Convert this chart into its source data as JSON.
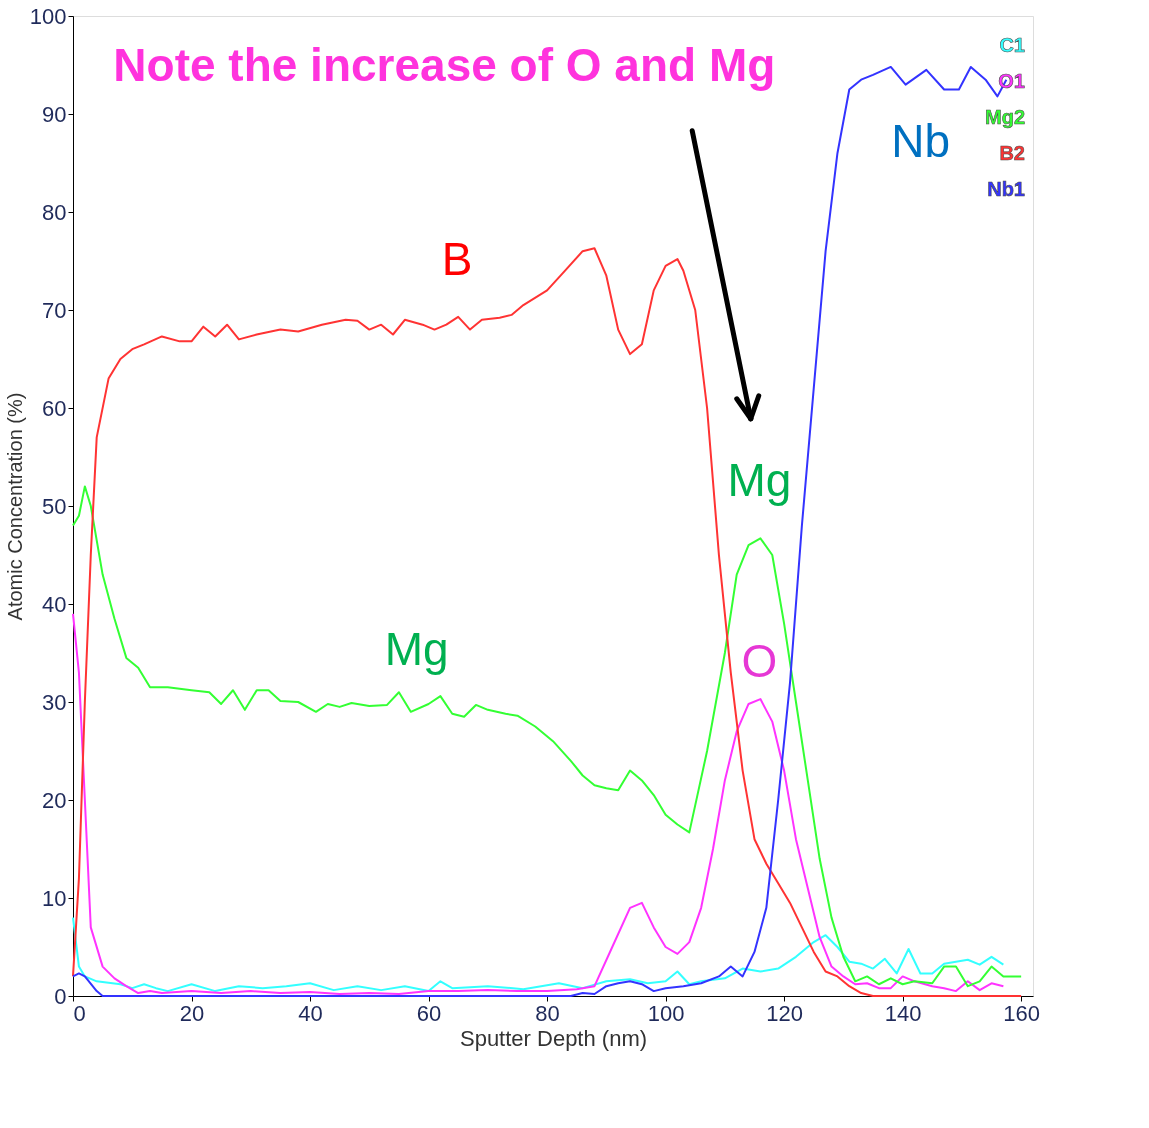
{
  "chart_data": {
    "type": "line",
    "xlabel": "Sputter Depth (nm)",
    "ylabel": "Atomic Concentration (%)",
    "xlim": [
      0,
      162
    ],
    "ylim": [
      0,
      100
    ],
    "xticks": [
      0,
      20,
      40,
      60,
      80,
      100,
      120,
      140,
      160
    ],
    "yticks": [
      0,
      10,
      20,
      30,
      40,
      50,
      60,
      70,
      80,
      90,
      100
    ],
    "grid": false,
    "legend": "top right",
    "marker": "none",
    "line_style": "solid",
    "annotations": [
      "Note the increase of O and Mg",
      "B",
      "Mg",
      "Nb",
      "Mg",
      "O"
    ],
    "series": [
      {
        "name": "C1",
        "color": "#33ffff",
        "x": [
          0,
          1,
          2,
          4,
          8,
          10,
          12,
          14,
          16,
          20,
          24,
          28,
          32,
          36,
          40,
          44,
          48,
          52,
          56,
          60,
          62,
          64,
          70,
          76,
          82,
          86,
          90,
          94,
          97,
          100,
          102,
          104,
          106,
          110,
          113,
          116,
          119,
          122,
          125,
          127,
          129,
          131,
          133,
          135,
          137,
          139,
          141,
          143,
          145,
          147,
          149,
          151,
          153,
          155,
          157
        ],
        "values": [
          8,
          3,
          2,
          1.5,
          1.2,
          0.8,
          1.2,
          0.8,
          0.5,
          1.2,
          0.5,
          1,
          0.8,
          1,
          1.3,
          0.6,
          1,
          0.6,
          1,
          0.5,
          1.5,
          0.8,
          1,
          0.7,
          1.3,
          0.8,
          1.5,
          1.7,
          1.3,
          1.5,
          2.5,
          1.2,
          1.5,
          1.8,
          2.8,
          2.5,
          2.8,
          4,
          5.5,
          6.2,
          5,
          3.5,
          3.3,
          2.8,
          3.8,
          2.3,
          4.8,
          2.3,
          2.3,
          3.3,
          3.5,
          3.7,
          3.2,
          4,
          3.2
        ]
      },
      {
        "name": "O1",
        "color": "#ff33ff",
        "x": [
          0,
          1,
          2,
          3,
          5,
          7,
          9,
          11,
          13,
          15,
          20,
          25,
          30,
          35,
          40,
          45,
          50,
          55,
          60,
          65,
          70,
          75,
          80,
          85,
          88,
          91,
          94,
          96,
          98,
          100,
          102,
          104,
          106,
          108,
          110,
          112,
          114,
          116,
          118,
          120,
          122,
          124,
          126,
          128,
          130,
          132,
          134,
          136,
          138,
          140,
          142,
          145,
          147,
          149,
          151,
          153,
          155,
          157
        ],
        "values": [
          39,
          33,
          20,
          7,
          3,
          1.8,
          1,
          0.3,
          0.5,
          0.3,
          0.5,
          0.3,
          0.5,
          0.3,
          0.4,
          0.2,
          0.3,
          0.2,
          0.5,
          0.5,
          0.6,
          0.5,
          0.5,
          0.7,
          1,
          5,
          9,
          9.5,
          7,
          5,
          4.3,
          5.5,
          9,
          15,
          22,
          27,
          29.8,
          30.3,
          28,
          23,
          16,
          11,
          6,
          3,
          2,
          1.2,
          1.3,
          0.8,
          0.8,
          2,
          1.5,
          1,
          0.8,
          0.5,
          1.5,
          0.6,
          1.3,
          1
        ]
      },
      {
        "name": "Mg2",
        "color": "#33ff33",
        "x": [
          0,
          1,
          2,
          3,
          5,
          7,
          9,
          11,
          13,
          16,
          20,
          23,
          25,
          27,
          29,
          31,
          33,
          35,
          38,
          41,
          43,
          45,
          47,
          50,
          53,
          55,
          57,
          60,
          62,
          64,
          66,
          68,
          70,
          73,
          75,
          78,
          81,
          84,
          86,
          88,
          90,
          92,
          94,
          96,
          98,
          100,
          102,
          104,
          107,
          110,
          112,
          114,
          116,
          118,
          120,
          122,
          124,
          126,
          128,
          130,
          132,
          134,
          136,
          138,
          140,
          142,
          145,
          147,
          149,
          151,
          153,
          155,
          157,
          160
        ],
        "values": [
          48,
          49,
          52,
          50,
          43,
          38.5,
          34.5,
          33.5,
          31.5,
          31.5,
          31.2,
          31,
          29.8,
          31.2,
          29.2,
          31.2,
          31.2,
          30.1,
          30,
          29,
          29.8,
          29.5,
          29.9,
          29.6,
          29.7,
          31,
          29,
          29.8,
          30.6,
          28.8,
          28.5,
          29.7,
          29.2,
          28.8,
          28.6,
          27.5,
          26,
          24,
          22.5,
          21.5,
          21.2,
          21,
          23,
          22,
          20.5,
          18.5,
          17.5,
          16.7,
          25,
          35,
          43,
          46,
          46.7,
          45,
          38,
          30,
          22,
          14,
          8,
          4,
          1.5,
          2,
          1.2,
          1.8,
          1.2,
          1.5,
          1.3,
          3,
          3,
          1,
          1.5,
          3,
          2,
          2
        ]
      },
      {
        "name": "B2",
        "color": "#ff3333",
        "x": [
          0,
          1,
          2,
          3,
          4,
          6,
          8,
          10,
          12,
          15,
          18,
          20,
          22,
          24,
          26,
          28,
          31,
          35,
          38,
          42,
          46,
          48,
          50,
          52,
          54,
          56,
          59,
          61,
          63,
          65,
          67,
          69,
          72,
          74,
          76,
          80,
          83,
          86,
          88,
          90,
          92,
          94,
          96,
          98,
          100,
          102,
          103,
          105,
          107,
          109,
          111,
          113,
          115,
          117,
          119,
          121,
          123,
          125,
          127,
          129,
          131,
          133,
          135,
          160
        ],
        "values": [
          2,
          12,
          30,
          45,
          57,
          63,
          65,
          66,
          66.5,
          67.3,
          66.8,
          66.8,
          68.3,
          67.3,
          68.5,
          67,
          67.5,
          68,
          67.8,
          68.5,
          69,
          68.9,
          68,
          68.5,
          67.5,
          69,
          68.5,
          68,
          68.5,
          69.3,
          68,
          69,
          69.2,
          69.5,
          70.5,
          72,
          74,
          76,
          76.3,
          73.5,
          68,
          65.5,
          66.5,
          72,
          74.5,
          75.2,
          74,
          70,
          60,
          45,
          33,
          23,
          16,
          13.5,
          11.5,
          9.5,
          7,
          4.5,
          2.5,
          2,
          1,
          0.3,
          0,
          0
        ]
      },
      {
        "name": "Nb1",
        "color": "#3333ff",
        "x": [
          0,
          1,
          2,
          4,
          5,
          80,
          84,
          86,
          88,
          90,
          92,
          94,
          96,
          98,
          100,
          103,
          106,
          109,
          111,
          113,
          115,
          117,
          119,
          121,
          123,
          125,
          127,
          129,
          131,
          133,
          135,
          138,
          140.5,
          144,
          147,
          149.5,
          151.5,
          154,
          156,
          157.5
        ],
        "values": [
          2,
          2.3,
          2,
          0.5,
          0,
          0,
          0,
          0.3,
          0.2,
          1,
          1.3,
          1.5,
          1.2,
          0.5,
          0.8,
          1,
          1.3,
          2,
          3,
          2,
          4.5,
          9,
          20,
          32,
          48,
          62,
          76,
          86,
          92.5,
          93.5,
          94,
          94.8,
          93,
          94.5,
          92.5,
          92.5,
          94.8,
          93.5,
          91.8,
          93.5
        ]
      }
    ]
  }
}
